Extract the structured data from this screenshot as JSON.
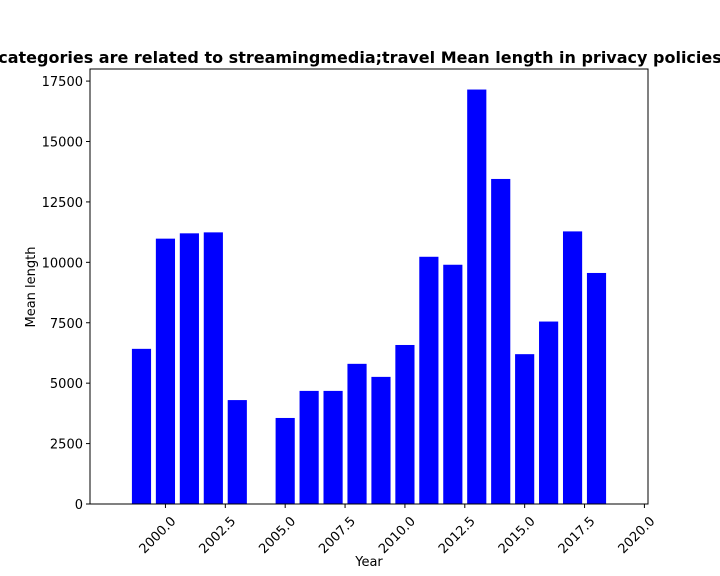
{
  "chart_data": {
    "type": "bar",
    "title": "categories are related to streamingmedia;travel Mean length in privacy policies",
    "xlabel": "Year",
    "ylabel": "Mean length",
    "x": [
      1999,
      2000,
      2001,
      2002,
      2003,
      2005,
      2006,
      2007,
      2008,
      2009,
      2010,
      2011,
      2012,
      2013,
      2014,
      2015,
      2016,
      2017,
      2018
    ],
    "values": [
      6420,
      10980,
      11200,
      11240,
      4300,
      3560,
      4680,
      4680,
      5800,
      5260,
      6580,
      10230,
      9900,
      17150,
      13450,
      6200,
      7550,
      11280,
      9560
    ],
    "xlim": [
      1996.85,
      2020.15
    ],
    "ylim": [
      0,
      18000
    ],
    "x_ticks": [
      2000.0,
      2002.5,
      2005.0,
      2007.5,
      2010.0,
      2012.5,
      2015.0,
      2017.5,
      2020.0
    ],
    "x_tick_labels": [
      "2000.0",
      "2002.5",
      "2005.0",
      "2007.5",
      "2010.0",
      "2012.5",
      "2015.0",
      "2017.5",
      "2020.0"
    ],
    "y_ticks": [
      0,
      2500,
      5000,
      7500,
      10000,
      12500,
      15000,
      17500
    ],
    "y_tick_labels": [
      "0",
      "2500",
      "5000",
      "7500",
      "10000",
      "12500",
      "15000",
      "17500"
    ],
    "bar_color": "#0000ff",
    "grid": false,
    "legend": "none"
  }
}
